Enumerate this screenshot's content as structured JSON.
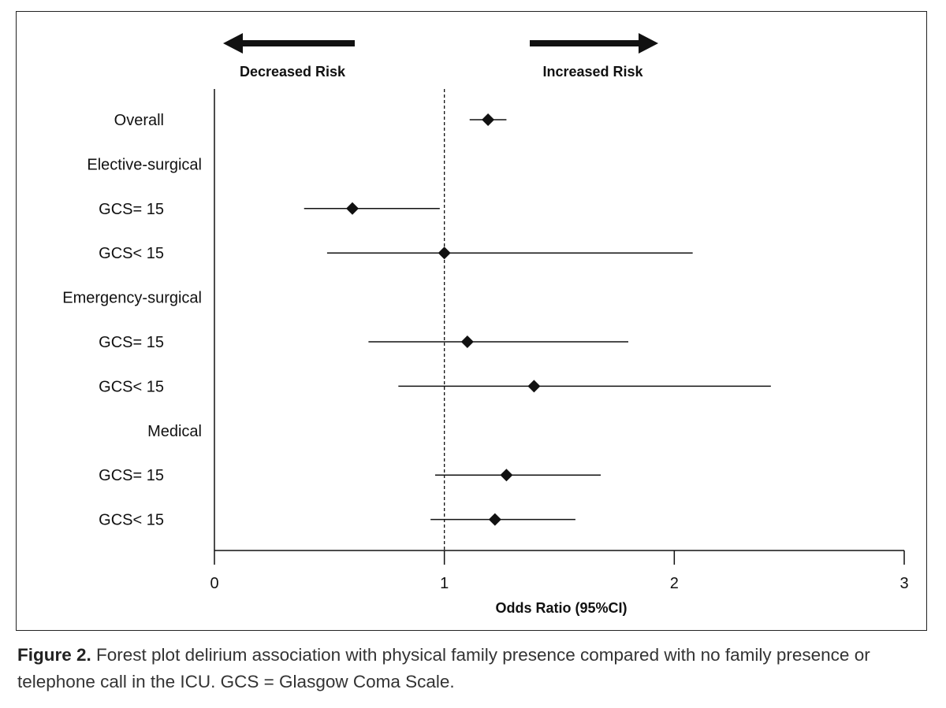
{
  "chart_data": {
    "type": "forest",
    "xlabel": "Odds Ratio (95%CI)",
    "xlim": [
      0,
      3
    ],
    "xticks": [
      0,
      1,
      2,
      3
    ],
    "reference_line": 1,
    "direction_labels": {
      "left": "Decreased Risk",
      "right": "Increased Risk"
    },
    "rows": [
      {
        "label": "Overall",
        "or": 1.19,
        "lo": 1.11,
        "hi": 1.27,
        "header": false
      },
      {
        "label": "Elective-surgical",
        "header": true
      },
      {
        "label": "GCS= 15",
        "or": 0.6,
        "lo": 0.39,
        "hi": 0.98,
        "header": false
      },
      {
        "label": "GCS< 15",
        "or": 1.0,
        "lo": 0.49,
        "hi": 2.08,
        "header": false
      },
      {
        "label": "Emergency-surgical",
        "header": true
      },
      {
        "label": "GCS= 15",
        "or": 1.1,
        "lo": 0.67,
        "hi": 1.8,
        "header": false
      },
      {
        "label": "GCS< 15",
        "or": 1.39,
        "lo": 0.8,
        "hi": 2.42,
        "header": false
      },
      {
        "label": "Medical",
        "header": true
      },
      {
        "label": "GCS= 15",
        "or": 1.27,
        "lo": 0.96,
        "hi": 1.68,
        "header": false
      },
      {
        "label": "GCS< 15",
        "or": 1.22,
        "lo": 0.94,
        "hi": 1.57,
        "header": false
      }
    ]
  },
  "caption": {
    "label": "Figure 2.",
    "text": " Forest plot delirium association with physical family presence compared with no family presence or telephone call in the ICU. GCS = Glasgow Coma Scale."
  }
}
